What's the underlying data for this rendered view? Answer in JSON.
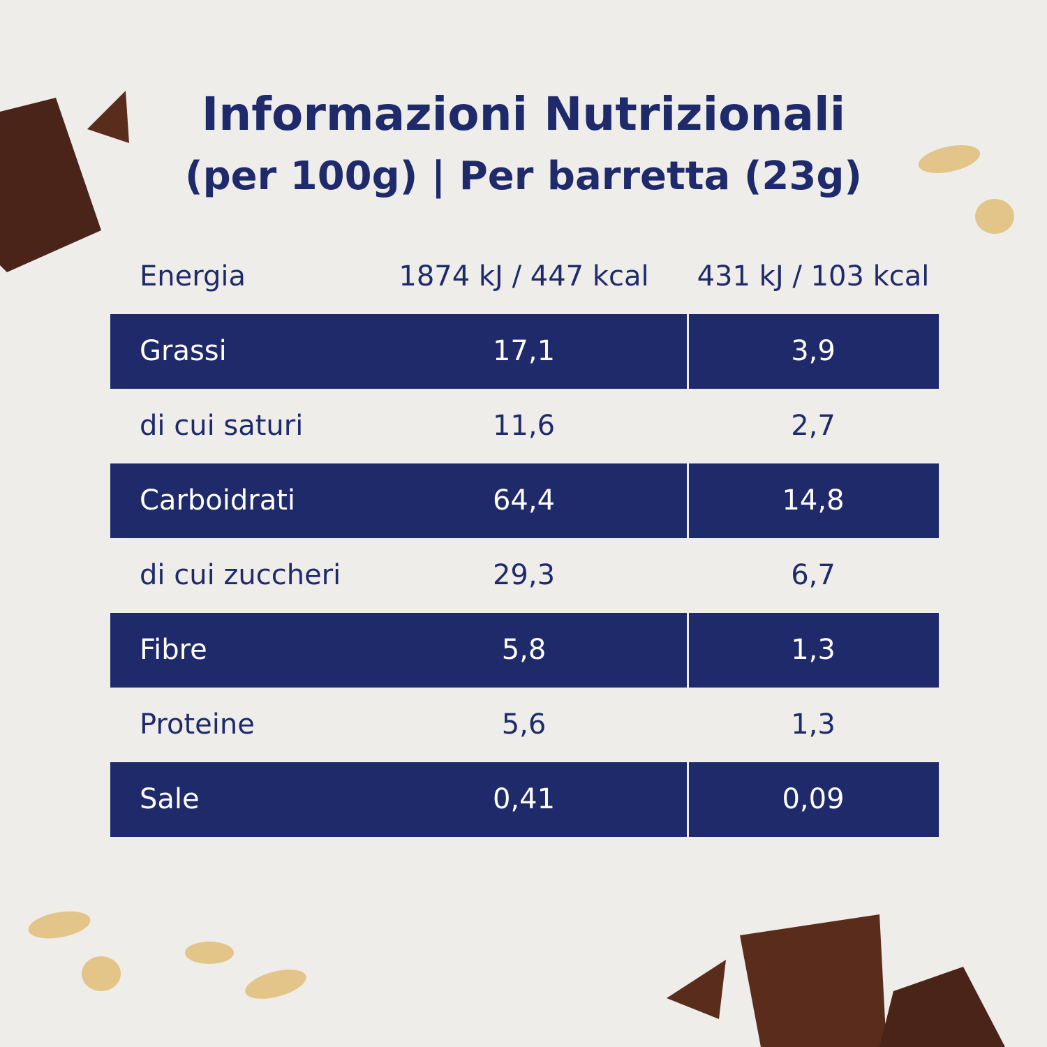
{
  "header": {
    "title": "Informazioni Nutrizionali",
    "subtitle": "(per 100g) | Per barretta (23g)"
  },
  "table": {
    "rows": [
      [
        "Energia",
        "1874 kJ / 447 kcal",
        "431 kJ / 103 kcal"
      ],
      [
        "Grassi",
        "17,1",
        "3,9"
      ],
      [
        "di cui saturi",
        "11,6",
        "2,7"
      ],
      [
        "Carboidrati",
        "64,4",
        "14,8"
      ],
      [
        "di cui zuccheri",
        "29,3",
        "6,7"
      ],
      [
        "Fibre",
        "5,8",
        "1,3"
      ],
      [
        "Proteine",
        "5,6",
        "1,3"
      ],
      [
        "Sale",
        "0,41",
        "0,09"
      ]
    ]
  }
}
